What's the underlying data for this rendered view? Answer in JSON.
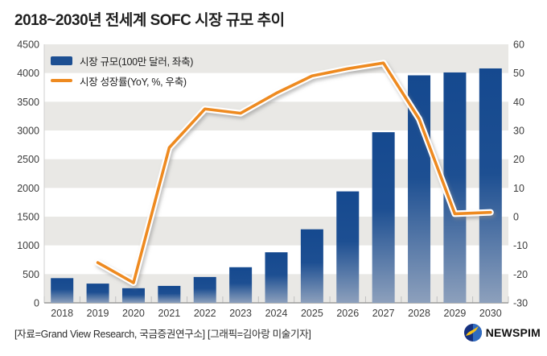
{
  "title": "2018~2030년 전세계 SOFC 시장 규모 추이",
  "legend": {
    "bar_label": "시장 규모(100만 달러, 좌축)",
    "line_label": "시장 성장률(YoY, %, 우축)"
  },
  "footer": {
    "source": "[자료=Grand View Research, 국금증권연구소] [그래픽=김아랑 미술기자]",
    "brand": "NEWSPIM"
  },
  "colors": {
    "bar_top": "#15498f",
    "bar_mid": "#1d4f92",
    "bar_bottom": "#8da0bc",
    "line": "#ee8a20",
    "line_casing": "#ffffff",
    "band_gray": "#e9e8e5",
    "axis_line": "#cfcfcf",
    "baseline": "#9a9a9a",
    "tick": "#c0c0c0",
    "axis_text": "#3c3c3c",
    "logo_navy": "#16317f",
    "logo_blue": "#2f6bc0",
    "logo_yellow": "#f5c21a"
  },
  "chart_data": {
    "type": "bar+line combo",
    "title": "2018~2030년 전세계 SOFC 시장 규모 추이",
    "categories": [
      "2018",
      "2019",
      "2020",
      "2021",
      "2022",
      "2023",
      "2024",
      "2025",
      "2026",
      "2027",
      "2028",
      "2029",
      "2030"
    ],
    "series": [
      {
        "name": "시장 규모(100만 달러, 좌축)",
        "type": "bar",
        "axis": "left",
        "values": [
          430,
          335,
          255,
          295,
          450,
          620,
          880,
          1280,
          1940,
          2970,
          3960,
          4010,
          4080
        ]
      },
      {
        "name": "시장 성장률(YoY, %, 우축)",
        "type": "line",
        "axis": "right",
        "values": [
          null,
          -16,
          -23,
          24,
          37.5,
          36,
          43,
          49,
          51.5,
          53.5,
          34,
          1,
          1.5
        ]
      }
    ],
    "left_axis": {
      "min": 0,
      "max": 4500,
      "step": 500,
      "label": "100만 달러"
    },
    "right_axis": {
      "min": -30,
      "max": 60,
      "step": 10,
      "label": "YoY %"
    },
    "grid": "horizontal alternating gray bands every 500 units",
    "legend_position": "top-left inside plot"
  }
}
